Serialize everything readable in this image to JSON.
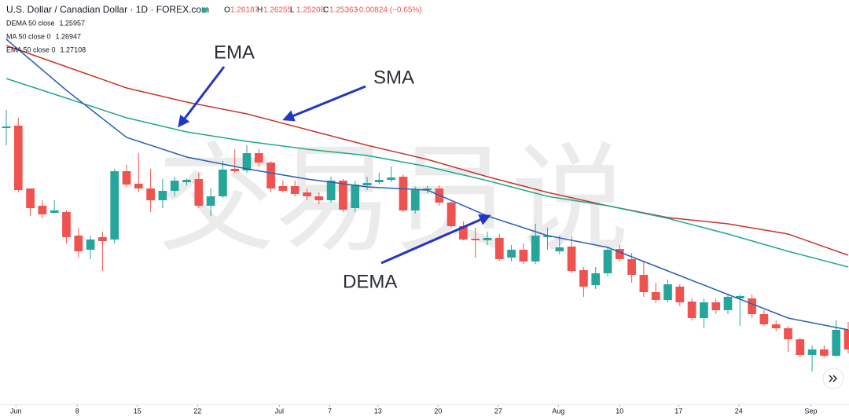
{
  "header": {
    "symbol": "U.S. Dollar / Canadian Dollar · 1D · FOREX.com",
    "ohlc": [
      {
        "label": "O",
        "value": "1.26187"
      },
      {
        "label": "H",
        "value": "1.26255"
      },
      {
        "label": "L",
        "value": "1.25208"
      },
      {
        "label": "C",
        "value": "1.25363"
      }
    ],
    "change": "−0.00824 (−0.65%)",
    "studies": [
      {
        "name": "DEMA 50 close",
        "value": "1.25957",
        "color": "#2b5fb4"
      },
      {
        "name": "MA 50 close 0",
        "value": "1.26947",
        "color": "#c8352b"
      },
      {
        "name": "EMA 50 close 0",
        "value": "1.27108",
        "color": "#1ea88f"
      }
    ]
  },
  "watermark": "交易员说",
  "chart_data": {
    "type": "candlestick",
    "up_color": "#26a69a",
    "down_color": "#ef5350",
    "ylim": [
      1.2685,
      1.32
    ],
    "xlim": [
      0,
      70
    ],
    "xticks": [
      {
        "value": 0.8,
        "label": "Jun"
      },
      {
        "value": 5.9,
        "label": "8"
      },
      {
        "value": 10.9,
        "label": "15"
      },
      {
        "value": 15.9,
        "label": "22"
      },
      {
        "value": 22.7,
        "label": "Jul"
      },
      {
        "value": 26.9,
        "label": "7"
      },
      {
        "value": 30.9,
        "label": "13"
      },
      {
        "value": 35.9,
        "label": "20"
      },
      {
        "value": 40.9,
        "label": "27"
      },
      {
        "value": 45.9,
        "label": "Aug"
      },
      {
        "value": 51,
        "label": "10"
      },
      {
        "value": 55.9,
        "label": "17"
      },
      {
        "value": 60.9,
        "label": "24"
      },
      {
        "value": 66.9,
        "label": "Sep"
      }
    ],
    "open": [
      1.3037,
      1.304,
      1.296,
      1.2938,
      1.2929,
      1.293,
      1.29,
      1.2882,
      1.2898,
      1.2895,
      1.2982,
      1.2966,
      1.296,
      1.2945,
      1.2957,
      1.2968,
      1.2972,
      1.2938,
      1.295,
      1.2985,
      1.2983,
      1.3005,
      1.2993,
      1.2963,
      1.2963,
      1.2955,
      1.295,
      1.2945,
      1.297,
      1.2935,
      1.2964,
      1.2968,
      1.2971,
      1.2975,
      1.2932,
      1.2958,
      1.296,
      1.2942,
      1.2912,
      1.2896,
      1.2894,
      1.2897,
      1.2872,
      1.2882,
      1.2867,
      1.2898,
      1.288,
      1.2886,
      1.2856,
      1.2837,
      1.2852,
      1.2883,
      1.287,
      1.285,
      1.2828,
      1.2818,
      1.2835,
      1.2816,
      1.2795,
      1.2815,
      1.2805,
      1.282,
      1.282,
      1.28,
      1.2787,
      1.2782,
      1.2768,
      1.2748,
      1.2755,
      1.2747,
      1.278
    ],
    "close": [
      1.3039,
      1.2958,
      1.2935,
      1.2927,
      1.2932,
      1.2898,
      1.288,
      1.2895,
      1.2893,
      1.2982,
      1.2965,
      1.296,
      1.2945,
      1.2957,
      1.297,
      1.2971,
      1.2938,
      1.295,
      1.2984,
      1.2982,
      1.3005,
      1.2993,
      1.296,
      1.2957,
      1.2953,
      1.295,
      1.2945,
      1.297,
      1.2933,
      1.2965,
      1.2967,
      1.2971,
      1.2974,
      1.2932,
      1.2958,
      1.296,
      1.2942,
      1.2912,
      1.2895,
      1.2894,
      1.2897,
      1.287,
      1.2882,
      1.2867,
      1.29,
      1.29,
      1.2885,
      1.2855,
      1.2835,
      1.2852,
      1.2882,
      1.287,
      1.285,
      1.2828,
      1.2818,
      1.2838,
      1.2815,
      1.2795,
      1.2815,
      1.2805,
      1.2822,
      1.2823,
      1.28,
      1.2787,
      1.2782,
      1.2768,
      1.2748,
      1.2755,
      1.2747,
      1.278,
      1.2755
    ],
    "high": [
      1.306,
      1.305,
      1.296,
      1.2945,
      1.2945,
      1.2932,
      1.291,
      1.29,
      1.2905,
      1.2985,
      1.299,
      1.3005,
      1.2985,
      1.2972,
      1.2975,
      1.2972,
      1.298,
      1.296,
      1.2995,
      1.301,
      1.3015,
      1.301,
      1.2995,
      1.297,
      1.297,
      1.296,
      1.2955,
      1.2975,
      1.2972,
      1.297,
      1.2975,
      1.298,
      1.2988,
      1.2978,
      1.2962,
      1.2963,
      1.2964,
      1.2945,
      1.2918,
      1.291,
      1.2905,
      1.2902,
      1.2888,
      1.289,
      1.2915,
      1.291,
      1.29,
      1.29,
      1.286,
      1.286,
      1.2886,
      1.2888,
      1.2878,
      1.2868,
      1.284,
      1.2844,
      1.2838,
      1.282,
      1.282,
      1.282,
      1.2825,
      1.2825,
      1.2825,
      1.2805,
      1.2792,
      1.2785,
      1.277,
      1.276,
      1.276,
      1.2792,
      1.279
    ],
    "low": [
      1.3015,
      1.2955,
      1.2925,
      1.2922,
      1.2928,
      1.289,
      1.2872,
      1.287,
      1.2855,
      1.289,
      1.2962,
      1.2955,
      1.293,
      1.2935,
      1.295,
      1.2964,
      1.2935,
      1.2925,
      1.2948,
      1.298,
      1.298,
      1.2988,
      1.2955,
      1.2955,
      1.295,
      1.2945,
      1.294,
      1.2942,
      1.293,
      1.293,
      1.2958,
      1.2965,
      1.2968,
      1.293,
      1.2928,
      1.2954,
      1.2938,
      1.291,
      1.2894,
      1.2872,
      1.2888,
      1.2868,
      1.2867,
      1.2864,
      1.2864,
      1.2882,
      1.2876,
      1.2852,
      1.2822,
      1.2832,
      1.2848,
      1.2867,
      1.284,
      1.2822,
      1.2814,
      1.2815,
      1.281,
      1.2792,
      1.2782,
      1.28,
      1.28,
      1.2785,
      1.2795,
      1.2785,
      1.2778,
      1.2752,
      1.2745,
      1.2727,
      1.2745,
      1.2745,
      1.275
    ],
    "lines": [
      {
        "name": "SMA",
        "color": "#c8352b",
        "x": [
          0,
          5,
          10,
          15,
          20,
          25,
          30,
          35,
          40,
          45,
          50,
          55,
          60,
          65,
          70
        ],
        "values": [
          1.3142,
          1.3115,
          1.3088,
          1.307,
          1.3055,
          1.3035,
          1.3015,
          1.2997,
          1.2975,
          1.2955,
          1.2938,
          1.2923,
          1.2915,
          1.2902,
          1.2875
        ]
      },
      {
        "name": "EMA",
        "color": "#1ea88f",
        "x": [
          0,
          5,
          10,
          15,
          20,
          25,
          30,
          35,
          40,
          45,
          50,
          55,
          60,
          65,
          70
        ],
        "values": [
          1.31,
          1.3075,
          1.305,
          1.3032,
          1.302,
          1.301,
          1.3002,
          1.2988,
          1.297,
          1.295,
          1.2938,
          1.2922,
          1.2902,
          1.288,
          1.286
        ]
      },
      {
        "name": "DEMA",
        "color": "#2b5fb4",
        "x": [
          0,
          5,
          10,
          15,
          20,
          25,
          30,
          35,
          40,
          45,
          50,
          55,
          60,
          65,
          70
        ],
        "values": [
          1.315,
          1.3085,
          1.3025,
          1.3,
          1.2985,
          1.2972,
          1.2962,
          1.2958,
          1.2925,
          1.29,
          1.2885,
          1.2855,
          1.2825,
          1.2795,
          1.278
        ]
      }
    ]
  }
}
